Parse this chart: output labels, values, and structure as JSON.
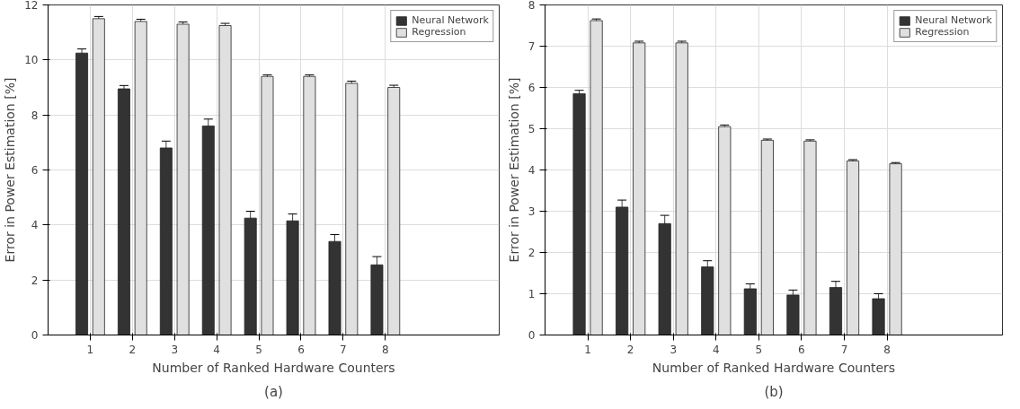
{
  "chart_data": [
    {
      "type": "bar",
      "xlabel": "Number of Ranked Hardware Counters",
      "ylabel": "Error in Power Estimation [%]",
      "x": [
        1,
        2,
        3,
        4,
        5,
        6,
        7,
        8
      ],
      "xlim": [
        0,
        10.7
      ],
      "xticks": [
        1,
        2,
        3,
        4,
        5,
        6,
        7,
        8
      ],
      "ylim": [
        0,
        12
      ],
      "yticks": [
        0,
        2,
        4,
        6,
        8,
        10,
        12
      ],
      "grid": true,
      "legend": "top right",
      "annotations": [
        "(a)"
      ],
      "series": [
        {
          "name": "Neural Network",
          "color": "#333333",
          "values": [
            10.25,
            8.95,
            6.8,
            7.6,
            4.25,
            4.15,
            3.4,
            2.55
          ],
          "errors": [
            0.15,
            0.12,
            0.25,
            0.25,
            0.25,
            0.25,
            0.25,
            0.3
          ]
        },
        {
          "name": "Regression",
          "color": "#e0e0e0",
          "values": [
            11.5,
            11.4,
            11.3,
            11.25,
            9.4,
            9.4,
            9.15,
            9.0
          ],
          "errors": [
            0.08,
            0.08,
            0.08,
            0.08,
            0.06,
            0.06,
            0.08,
            0.08
          ]
        }
      ]
    },
    {
      "type": "bar",
      "xlabel": "Number of Ranked Hardware Counters",
      "ylabel": "Error in Power Estimation [%]",
      "x": [
        1,
        2,
        3,
        4,
        5,
        6,
        7,
        8
      ],
      "xlim": [
        0,
        10.7
      ],
      "xticks": [
        1,
        2,
        3,
        4,
        5,
        6,
        7,
        8
      ],
      "ylim": [
        0,
        8
      ],
      "yticks": [
        0,
        1,
        2,
        3,
        4,
        5,
        6,
        7,
        8
      ],
      "grid": true,
      "legend": "top right",
      "annotations": [
        "(b)"
      ],
      "series": [
        {
          "name": "Neural Network",
          "color": "#333333",
          "values": [
            5.85,
            3.1,
            2.7,
            1.65,
            1.12,
            0.97,
            1.15,
            0.88
          ],
          "errors": [
            0.08,
            0.17,
            0.2,
            0.15,
            0.12,
            0.12,
            0.15,
            0.12
          ]
        },
        {
          "name": "Regression",
          "color": "#e0e0e0",
          "values": [
            7.62,
            7.08,
            7.08,
            5.05,
            4.72,
            4.7,
            4.22,
            4.15
          ],
          "errors": [
            0.04,
            0.04,
            0.04,
            0.04,
            0.03,
            0.03,
            0.03,
            0.03
          ]
        }
      ]
    }
  ]
}
